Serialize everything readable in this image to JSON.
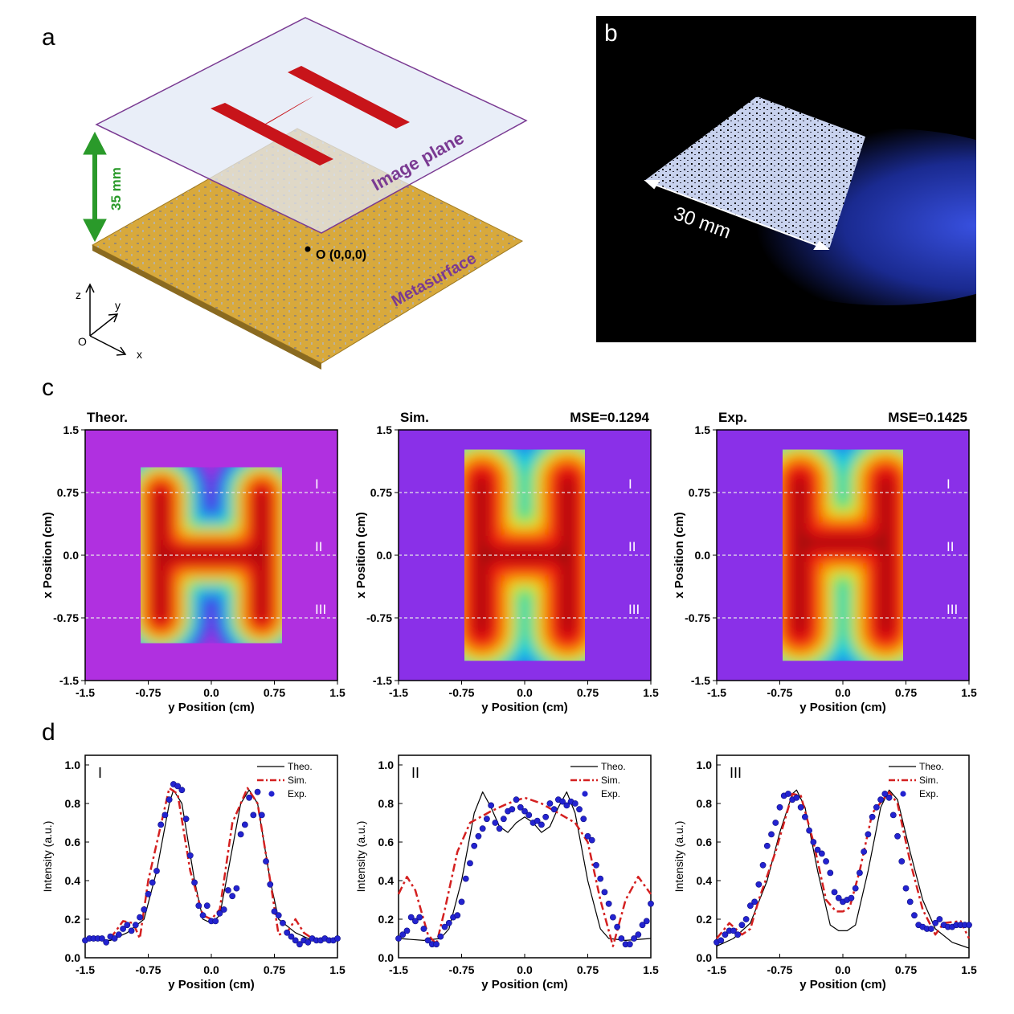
{
  "panels": {
    "a": {
      "label": "a",
      "image_plane": "Image plane",
      "metasurface": "Metasurface",
      "distance": "35 mm",
      "origin": "O (0,0,0)",
      "axes": {
        "z": "z",
        "y": "y",
        "x": "x",
        "o": "O"
      },
      "colors": {
        "plate": "#d8a93c",
        "letter": "#c8141a",
        "plane_text": "#7a3a92",
        "arrow": "#2a9a2a"
      }
    },
    "b": {
      "label": "b",
      "scale": "30 mm"
    },
    "c": {
      "label": "c",
      "maps": [
        {
          "title": "Theor.",
          "mse": "",
          "kind": "theor"
        },
        {
          "title": "Sim.",
          "mse": "MSE=0.1294",
          "kind": "sim"
        },
        {
          "title": "Exp.",
          "mse": "MSE=0.1425",
          "kind": "exp"
        }
      ],
      "xlabel": "y Position (cm)",
      "ylabel": "x Position (cm)",
      "ticks": [
        "-1.5",
        "-0.75",
        "0.0",
        "0.75",
        "1.5"
      ],
      "lines": [
        "I",
        "II",
        "III"
      ]
    },
    "d": {
      "label": "d"
    }
  },
  "chart_data": [
    {
      "type": "line",
      "title": "I",
      "xlabel": "y Position (cm)",
      "ylabel": "Intensity (a.u.)",
      "xlim": [
        -1.5,
        1.5
      ],
      "ylim": [
        0,
        1.05
      ],
      "xticks": [
        "-1.5",
        "-0.75",
        "0.0",
        "0.75",
        "1.5"
      ],
      "yticks": [
        "0.0",
        "0.2",
        "0.4",
        "0.6",
        "0.8",
        "1.0"
      ],
      "legend": "top-right",
      "series": [
        {
          "name": "Theo.",
          "color": "#000000",
          "style": "solid",
          "x": [
            -1.5,
            -1.2,
            -1.0,
            -0.8,
            -0.65,
            -0.5,
            -0.45,
            -0.35,
            -0.2,
            -0.1,
            0,
            0.1,
            0.2,
            0.35,
            0.45,
            0.55,
            0.7,
            0.8,
            1.0,
            1.2,
            1.5
          ],
          "y": [
            0.09,
            0.09,
            0.13,
            0.2,
            0.45,
            0.8,
            0.87,
            0.8,
            0.4,
            0.2,
            0.18,
            0.22,
            0.45,
            0.8,
            0.87,
            0.8,
            0.4,
            0.2,
            0.13,
            0.09,
            0.09
          ]
        },
        {
          "name": "Sim.",
          "color": "#d42020",
          "style": "dashdot",
          "x": [
            -1.2,
            -1.05,
            -0.93,
            -0.85,
            -0.75,
            -0.5,
            -0.4,
            -0.25,
            -0.1,
            0,
            0.1,
            0.25,
            0.43,
            0.55,
            0.7,
            0.8,
            0.9,
            1.0,
            1.1,
            1.2
          ],
          "y": [
            0.1,
            0.19,
            0.18,
            0.1,
            0.4,
            0.88,
            0.85,
            0.45,
            0.22,
            0.2,
            0.25,
            0.7,
            0.88,
            0.8,
            0.4,
            0.12,
            0.13,
            0.2,
            0.13,
            0.1
          ]
        },
        {
          "name": "Exp.",
          "color": "#2323d0",
          "style": "points",
          "x": [
            -1.5,
            -1.45,
            -1.4,
            -1.35,
            -1.3,
            -1.25,
            -1.2,
            -1.15,
            -1.1,
            -1.05,
            -1.0,
            -0.95,
            -0.9,
            -0.85,
            -0.8,
            -0.75,
            -0.7,
            -0.65,
            -0.6,
            -0.55,
            -0.5,
            -0.45,
            -0.4,
            -0.35,
            -0.3,
            -0.25,
            -0.2,
            -0.15,
            -0.1,
            -0.05,
            0,
            0.05,
            0.1,
            0.15,
            0.2,
            0.25,
            0.3,
            0.35,
            0.4,
            0.45,
            0.5,
            0.55,
            0.6,
            0.65,
            0.7,
            0.75,
            0.8,
            0.85,
            0.9,
            0.95,
            1.0,
            1.05,
            1.1,
            1.15,
            1.2,
            1.25,
            1.3,
            1.35,
            1.4,
            1.45,
            1.5
          ],
          "y": [
            0.09,
            0.1,
            0.1,
            0.1,
            0.1,
            0.08,
            0.11,
            0.1,
            0.12,
            0.15,
            0.17,
            0.14,
            0.17,
            0.21,
            0.25,
            0.33,
            0.39,
            0.45,
            0.69,
            0.74,
            0.82,
            0.9,
            0.89,
            0.87,
            0.72,
            0.53,
            0.39,
            0.27,
            0.22,
            0.27,
            0.19,
            0.19,
            0.23,
            0.25,
            0.35,
            0.32,
            0.36,
            0.64,
            0.69,
            0.83,
            0.74,
            0.86,
            0.74,
            0.5,
            0.38,
            0.24,
            0.22,
            0.18,
            0.13,
            0.11,
            0.09,
            0.07,
            0.09,
            0.08,
            0.1,
            0.09,
            0.09,
            0.1,
            0.09,
            0.09,
            0.1
          ]
        }
      ]
    },
    {
      "type": "line",
      "title": "II",
      "xlabel": "y Position (cm)",
      "ylabel": "Intensity (a.u.)",
      "xlim": [
        -1.5,
        1.5
      ],
      "ylim": [
        0,
        1.05
      ],
      "xticks": [
        "-1.5",
        "-0.75",
        "0.0",
        "0.75",
        "1.5"
      ],
      "yticks": [
        "0.0",
        "0.2",
        "0.4",
        "0.6",
        "0.8",
        "1.0"
      ],
      "legend": "top-right",
      "series": [
        {
          "name": "Theo.",
          "color": "#000000",
          "style": "solid",
          "x": [
            -1.5,
            -1.2,
            -1.0,
            -0.9,
            -0.75,
            -0.6,
            -0.5,
            -0.4,
            -0.3,
            -0.2,
            -0.1,
            0,
            0.1,
            0.2,
            0.3,
            0.4,
            0.5,
            0.6,
            0.75,
            0.9,
            1.0,
            1.2,
            1.5
          ],
          "y": [
            0.1,
            0.09,
            0.1,
            0.15,
            0.4,
            0.75,
            0.86,
            0.78,
            0.68,
            0.65,
            0.7,
            0.73,
            0.7,
            0.65,
            0.68,
            0.78,
            0.86,
            0.75,
            0.4,
            0.15,
            0.1,
            0.09,
            0.1
          ]
        },
        {
          "name": "Sim.",
          "color": "#d42020",
          "style": "dashdot",
          "x": [
            -1.5,
            -1.4,
            -1.3,
            -1.15,
            -1.05,
            -0.95,
            -0.8,
            -0.65,
            -0.4,
            -0.2,
            0,
            0.2,
            0.4,
            0.6,
            0.75,
            0.9,
            1.05,
            1.2,
            1.35,
            1.5
          ],
          "y": [
            0.33,
            0.42,
            0.35,
            0.12,
            0.07,
            0.25,
            0.55,
            0.7,
            0.76,
            0.8,
            0.83,
            0.8,
            0.75,
            0.7,
            0.6,
            0.3,
            0.06,
            0.3,
            0.42,
            0.33
          ]
        },
        {
          "name": "Exp.",
          "color": "#2323d0",
          "style": "points",
          "x": [
            -1.5,
            -1.45,
            -1.4,
            -1.35,
            -1.3,
            -1.25,
            -1.2,
            -1.15,
            -1.1,
            -1.05,
            -1.0,
            -0.95,
            -0.9,
            -0.85,
            -0.8,
            -0.75,
            -0.7,
            -0.65,
            -0.6,
            -0.55,
            -0.5,
            -0.45,
            -0.4,
            -0.35,
            -0.3,
            -0.25,
            -0.2,
            -0.15,
            -0.1,
            -0.05,
            0,
            0.05,
            0.1,
            0.15,
            0.2,
            0.25,
            0.3,
            0.35,
            0.4,
            0.45,
            0.5,
            0.55,
            0.6,
            0.65,
            0.7,
            0.75,
            0.8,
            0.85,
            0.9,
            0.95,
            1.0,
            1.05,
            1.1,
            1.15,
            1.2,
            1.25,
            1.3,
            1.35,
            1.4,
            1.45,
            1.5
          ],
          "y": [
            0.1,
            0.12,
            0.14,
            0.21,
            0.19,
            0.21,
            0.15,
            0.09,
            0.07,
            0.07,
            0.11,
            0.16,
            0.18,
            0.21,
            0.22,
            0.29,
            0.41,
            0.49,
            0.58,
            0.63,
            0.67,
            0.72,
            0.79,
            0.7,
            0.67,
            0.72,
            0.76,
            0.77,
            0.82,
            0.78,
            0.76,
            0.74,
            0.7,
            0.71,
            0.69,
            0.73,
            0.8,
            0.77,
            0.82,
            0.81,
            0.79,
            0.81,
            0.8,
            0.77,
            0.72,
            0.63,
            0.61,
            0.48,
            0.41,
            0.34,
            0.28,
            0.21,
            0.16,
            0.1,
            0.07,
            0.07,
            0.1,
            0.12,
            0.17,
            0.19,
            0.28
          ]
        }
      ]
    },
    {
      "type": "line",
      "title": "III",
      "xlabel": "y Position (cm)",
      "ylabel": "Intensity (a.u.)",
      "xlim": [
        -1.5,
        1.5
      ],
      "ylim": [
        0,
        1.05
      ],
      "xticks": [
        "-1.5",
        "-0.75",
        "0.0",
        "0.75",
        "1.5"
      ],
      "yticks": [
        "0.0",
        "0.2",
        "0.4",
        "0.6",
        "0.8",
        "1.0"
      ],
      "legend": "top-right",
      "series": [
        {
          "name": "Theo.",
          "color": "#000000",
          "style": "solid",
          "x": [
            -1.5,
            -1.3,
            -1.1,
            -0.9,
            -0.75,
            -0.6,
            -0.55,
            -0.45,
            -0.3,
            -0.15,
            -0.05,
            0,
            0.05,
            0.15,
            0.3,
            0.45,
            0.55,
            0.65,
            0.8,
            0.95,
            1.1,
            1.3,
            1.5
          ],
          "y": [
            0.06,
            0.1,
            0.18,
            0.4,
            0.65,
            0.85,
            0.87,
            0.78,
            0.45,
            0.17,
            0.14,
            0.14,
            0.14,
            0.17,
            0.45,
            0.78,
            0.87,
            0.82,
            0.55,
            0.3,
            0.15,
            0.08,
            0.05
          ]
        },
        {
          "name": "Sim.",
          "color": "#d42020",
          "style": "dashdot",
          "x": [
            -1.5,
            -1.35,
            -1.2,
            -1.1,
            -1.0,
            -0.8,
            -0.6,
            -0.5,
            -0.35,
            -0.2,
            -0.08,
            0,
            0.08,
            0.2,
            0.35,
            0.55,
            0.65,
            0.8,
            0.95,
            1.1,
            1.2,
            1.4,
            1.5
          ],
          "y": [
            0.1,
            0.18,
            0.12,
            0.15,
            0.3,
            0.55,
            0.85,
            0.84,
            0.6,
            0.3,
            0.24,
            0.24,
            0.26,
            0.45,
            0.75,
            0.86,
            0.8,
            0.5,
            0.25,
            0.12,
            0.18,
            0.19,
            0.1
          ]
        },
        {
          "name": "Exp.",
          "color": "#2323d0",
          "style": "points",
          "x": [
            -1.5,
            -1.45,
            -1.4,
            -1.35,
            -1.3,
            -1.25,
            -1.2,
            -1.15,
            -1.1,
            -1.05,
            -1.0,
            -0.95,
            -0.9,
            -0.85,
            -0.8,
            -0.75,
            -0.7,
            -0.65,
            -0.6,
            -0.55,
            -0.5,
            -0.45,
            -0.4,
            -0.35,
            -0.3,
            -0.25,
            -0.2,
            -0.15,
            -0.1,
            -0.05,
            0,
            0.05,
            0.1,
            0.15,
            0.2,
            0.25,
            0.3,
            0.35,
            0.4,
            0.45,
            0.5,
            0.55,
            0.6,
            0.65,
            0.7,
            0.75,
            0.8,
            0.85,
            0.9,
            0.95,
            1.0,
            1.05,
            1.1,
            1.15,
            1.2,
            1.25,
            1.3,
            1.35,
            1.4,
            1.45,
            1.5
          ],
          "y": [
            0.08,
            0.09,
            0.12,
            0.14,
            0.14,
            0.12,
            0.17,
            0.2,
            0.27,
            0.29,
            0.38,
            0.48,
            0.58,
            0.64,
            0.7,
            0.78,
            0.84,
            0.85,
            0.82,
            0.83,
            0.78,
            0.73,
            0.66,
            0.6,
            0.56,
            0.54,
            0.5,
            0.44,
            0.34,
            0.31,
            0.29,
            0.3,
            0.31,
            0.36,
            0.44,
            0.55,
            0.64,
            0.73,
            0.78,
            0.82,
            0.85,
            0.83,
            0.74,
            0.63,
            0.5,
            0.36,
            0.29,
            0.22,
            0.17,
            0.16,
            0.15,
            0.15,
            0.18,
            0.2,
            0.17,
            0.16,
            0.16,
            0.17,
            0.17,
            0.17,
            0.17
          ]
        }
      ]
    }
  ]
}
